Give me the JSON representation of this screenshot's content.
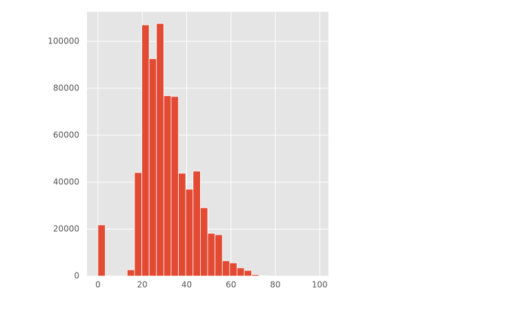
{
  "chart_data": {
    "type": "histogram",
    "bins": [
      0,
      3.3,
      6.6,
      9.9,
      13.2,
      16.5,
      19.8,
      23.1,
      26.4,
      29.7,
      33,
      36.3,
      39.6,
      42.9,
      46.2,
      49.5,
      52.8,
      56.1,
      59.4,
      62.7,
      66,
      69.3,
      72.6,
      75.9,
      79.2,
      82.5,
      85.8,
      89.1,
      92.4,
      95.7,
      99
    ],
    "values": [
      21800,
      0,
      0,
      0,
      2650,
      44100,
      107000,
      92600,
      107600,
      76800,
      76500,
      43800,
      37000,
      44700,
      29100,
      18200,
      17600,
      6500,
      5600,
      3500,
      2400,
      600,
      150,
      50,
      20,
      10,
      5,
      3,
      2,
      1
    ],
    "color": "#E24A33",
    "background": "#E5E5E5",
    "xlim": [
      -4.95,
      103.95
    ],
    "xticks": [
      0,
      20,
      40,
      60,
      80,
      100
    ],
    "ylim": [
      0,
      112600
    ],
    "yticks": [
      0,
      20000,
      40000,
      60000,
      80000,
      100000
    ],
    "grid": true
  }
}
